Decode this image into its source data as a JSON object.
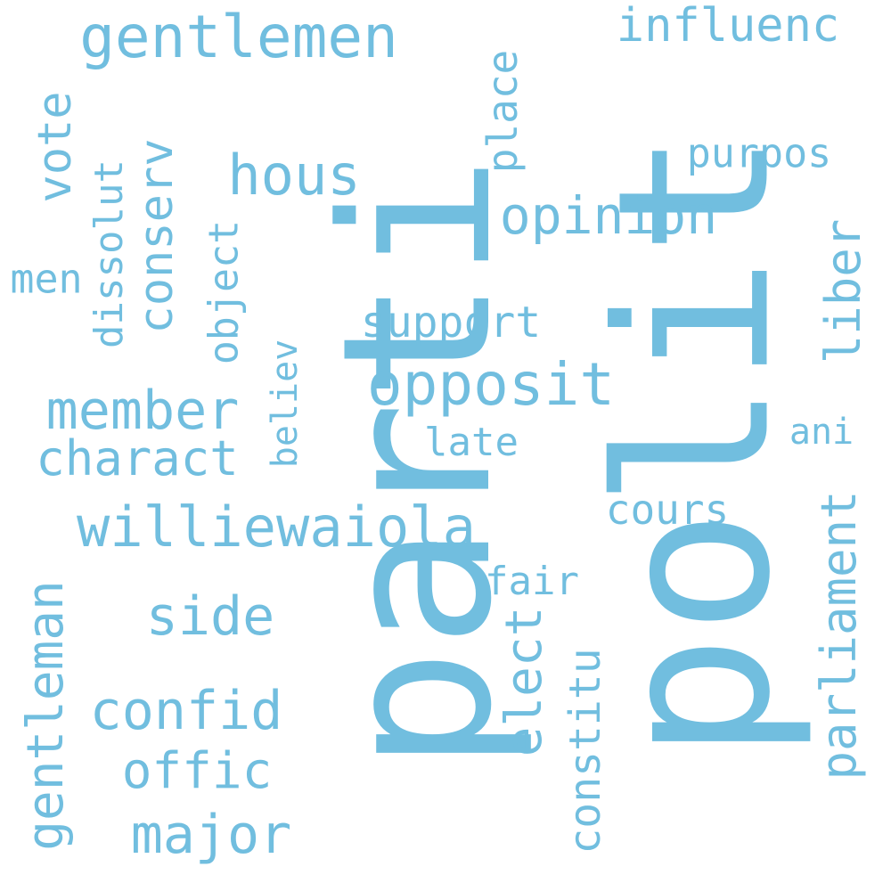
{
  "word_color": "#71bedf",
  "background_color": "#ffffff",
  "words": [
    "parti",
    "polit",
    "gentlemen",
    "influenc",
    "hous",
    "place",
    "vote",
    "conserv",
    "dissolut",
    "purpos",
    "opinion",
    "object",
    "men",
    "liber",
    "support",
    "believ",
    "opposit",
    "member",
    "charact",
    "late",
    "ani",
    "williewaiola",
    "cours",
    "fair",
    "side",
    "parliament",
    "elect",
    "gentleman",
    "confid",
    "constitu",
    "offic",
    "major"
  ]
}
